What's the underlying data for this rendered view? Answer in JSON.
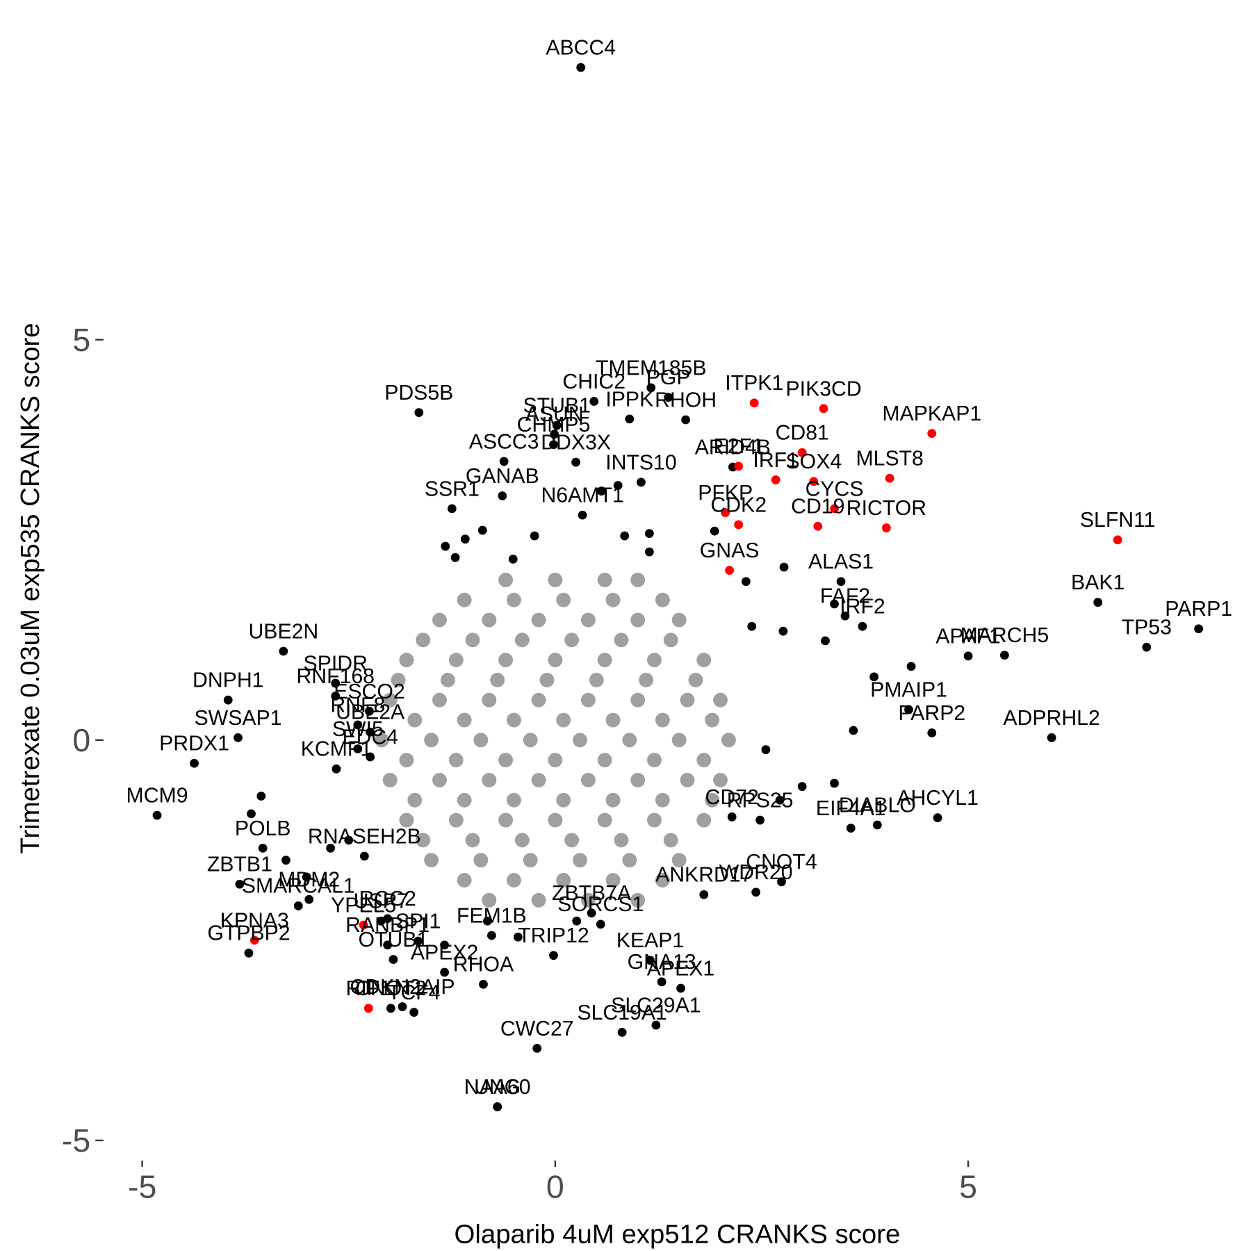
{
  "chart_data": {
    "type": "scatter",
    "x_label": "Olaparib 4uM exp512 CRANKS score",
    "y_label": "Trimetrexate 0.03uM exp535 CRANKS score",
    "xlim": [
      -5.45,
      8.15
    ],
    "ylim": [
      -5.19,
      8.94
    ],
    "xticks": [
      -5,
      0,
      5
    ],
    "yticks": [
      -5,
      0,
      5
    ],
    "grid": false,
    "series": [
      {
        "color": "#a0a0a0",
        "x": [
          -0.6,
          0,
          0.6,
          1.0,
          -1.1,
          -0.5,
          0.1,
          0.7,
          1.3,
          -1.4,
          -0.8,
          -0.2,
          0.4,
          1.0,
          1.5,
          -1.6,
          -1.0,
          -0.4,
          0.2,
          0.8,
          1.4,
          -1.8,
          -1.2,
          -0.6,
          0,
          0.6,
          1.2,
          1.8,
          -1.9,
          -1.3,
          -0.7,
          -0.1,
          0.5,
          1.1,
          1.7,
          -2,
          -1.4,
          -0.8,
          -0.2,
          0.4,
          1,
          1.6,
          2,
          -1.7,
          -1.1,
          -0.5,
          0.1,
          0.7,
          1.3,
          1.9,
          -2.1,
          -1.5,
          -0.9,
          -0.3,
          0.3,
          0.9,
          1.5,
          2.1,
          -1.8,
          -1.2,
          -0.6,
          0,
          0.6,
          1.2,
          1.8,
          -2,
          -1.4,
          -0.8,
          -0.2,
          0.4,
          1,
          1.6,
          2,
          -1.7,
          -1.1,
          -0.5,
          0.1,
          0.7,
          1.3,
          1.9,
          -1.8,
          -1.2,
          -0.6,
          0,
          0.6,
          1.2,
          1.8,
          -1.6,
          -1.0,
          -0.4,
          0.2,
          0.8,
          1.4,
          -1.5,
          -0.9,
          -0.3,
          0.3,
          0.9,
          1.5,
          -1.1,
          -0.5,
          0.1,
          0.7,
          1.3,
          -0.8,
          -0.2,
          0.4,
          1.0
        ],
        "values": [
          2,
          2,
          2,
          2,
          1.75,
          1.75,
          1.75,
          1.75,
          1.75,
          1.5,
          1.5,
          1.5,
          1.5,
          1.5,
          1.5,
          1.25,
          1.25,
          1.25,
          1.25,
          1.25,
          1.25,
          1,
          1,
          1,
          1,
          1,
          1,
          1,
          0.75,
          0.75,
          0.75,
          0.75,
          0.75,
          0.75,
          0.75,
          0.5,
          0.5,
          0.5,
          0.5,
          0.5,
          0.5,
          0.5,
          0.5,
          0.25,
          0.25,
          0.25,
          0.25,
          0.25,
          0.25,
          0.25,
          0,
          0,
          0,
          0,
          0,
          0,
          0,
          0,
          -0.25,
          -0.25,
          -0.25,
          -0.25,
          -0.25,
          -0.25,
          -0.25,
          -0.5,
          -0.5,
          -0.5,
          -0.5,
          -0.5,
          -0.5,
          -0.5,
          -0.5,
          -0.75,
          -0.75,
          -0.75,
          -0.75,
          -0.75,
          -0.75,
          -0.75,
          -1,
          -1,
          -1,
          -1,
          -1,
          -1,
          -1,
          -1.25,
          -1.25,
          -1.25,
          -1.25,
          -1.25,
          -1.25,
          -1.5,
          -1.5,
          -1.5,
          -1.5,
          -1.5,
          -1.5,
          -1.75,
          -1.75,
          -1.75,
          -1.75,
          -1.75,
          -2,
          -2,
          -2,
          -2
        ]
      },
      {
        "color": "#000000",
        "labels": [
          "ABCC4",
          "PDS5B",
          "TMEM185B",
          "PGP",
          "RHOH",
          "STUB1",
          "CHIC2",
          "ASUN",
          "IPPK",
          "ARID4B",
          "CHMP5",
          "DDX3X",
          "INTS10",
          "ASCC3",
          "SSR1",
          "GANAB",
          "N6AMT1",
          "ALAS1",
          "FAF2",
          "PARP1",
          "BAK1",
          "APAF1",
          "IRF2",
          "MARCH5",
          "TP53",
          "PMAIP1",
          "ADPRHL2",
          "PARP2",
          "EIF4A1",
          "AHCYL1",
          "DIABLO",
          "CD72",
          "RPS25",
          "ANKRD17",
          "WDR20",
          "CNOT4",
          "UBE2N",
          "DNPH1",
          "SWSAP1",
          "PRDX1",
          "MCM9",
          "SPIDR",
          "RNF168",
          "ESCO2",
          "RNF8",
          "UBE2A",
          "KCMF1",
          "SWI5",
          "EDC4",
          "POLB",
          "RNASEH2B",
          "ZBTB1",
          "SMARCAL1",
          "MDM2",
          "USP7",
          "RCC2",
          "GTPBP2",
          "RANBP1",
          "OTUB1",
          "SPI1",
          "APEX2",
          "RHOA",
          "FEM1B",
          "SORCS1",
          "ZBTB7A",
          "TRIP12",
          "KEAP1",
          "APEX1",
          "GNA13",
          "SLC29A1",
          "SLC19A1",
          "CWC27",
          "CNOT2",
          "TCF4",
          "CDKN2AIP",
          "NAA60",
          "UNG",
          null,
          null,
          null,
          null,
          null,
          null,
          null,
          null,
          null,
          null,
          null,
          null,
          null,
          null,
          null,
          null,
          null,
          null,
          null,
          null,
          null,
          null,
          null,
          null,
          null,
          null,
          null,
          null,
          null,
          null,
          null,
          null,
          null,
          null,
          null
        ],
        "x": [
          0.31,
          -1.65,
          1.16,
          1.37,
          1.58,
          0.02,
          0.47,
          -0.01,
          0.9,
          2.15,
          -0.02,
          0.25,
          1.04,
          -0.62,
          -1.25,
          -0.64,
          0.33,
          3.46,
          3.51,
          7.79,
          6.57,
          5.0,
          3.72,
          5.44,
          7.16,
          4.28,
          6.01,
          4.56,
          3.58,
          4.63,
          3.9,
          2.14,
          2.48,
          1.8,
          2.43,
          2.74,
          -3.29,
          -3.96,
          -3.84,
          -4.37,
          -4.82,
          -2.66,
          -2.66,
          -2.25,
          -2.39,
          -2.24,
          -2.65,
          -2.39,
          -2.24,
          -3.54,
          -2.31,
          -3.82,
          -3.11,
          -2.98,
          -2.11,
          -2.03,
          -3.71,
          -2.03,
          -1.96,
          -1.66,
          -1.34,
          -0.87,
          -0.77,
          0.55,
          0.44,
          -0.02,
          1.15,
          1.52,
          1.29,
          1.22,
          0.81,
          -0.22,
          -1.99,
          -1.71,
          -1.85,
          -0.7,
          -0.7,
          -0.88,
          -1.09,
          -1.33,
          -1.21,
          -0.51,
          -0.25,
          0.56,
          0.76,
          0.84,
          1.14,
          1.14,
          1.93,
          2.31,
          2.77,
          3.38,
          2.38,
          2.76,
          3.27,
          4.31,
          3.86,
          3.61,
          2.55,
          2.99,
          3.38,
          2.72,
          -3.01,
          -3.26,
          -2.72,
          -2.5,
          -3.68,
          -3.56,
          -0.82,
          -0.45,
          -1.34,
          0.26
        ],
        "values": [
          8.4,
          4.09,
          4.4,
          4.28,
          4.0,
          3.93,
          4.23,
          3.82,
          4.01,
          3.41,
          3.69,
          3.47,
          3.22,
          3.48,
          2.89,
          3.05,
          2.81,
          1.98,
          1.55,
          1.39,
          1.72,
          1.05,
          1.42,
          1.06,
          1.16,
          0.38,
          0.03,
          0.09,
          -1.1,
          -0.97,
          -1.06,
          -0.96,
          -1.0,
          -1.93,
          -1.9,
          -1.77,
          1.11,
          0.5,
          0.03,
          -0.29,
          -0.94,
          0.71,
          0.55,
          0.36,
          0.19,
          0.1,
          -0.36,
          -0.11,
          -0.21,
          -1.35,
          -1.45,
          -1.8,
          -2.07,
          -1.99,
          -2.26,
          -2.23,
          -2.66,
          -2.56,
          -2.74,
          -2.51,
          -2.9,
          -3.05,
          -2.44,
          -2.3,
          -2.16,
          -2.69,
          -2.75,
          -3.1,
          -3.02,
          -3.56,
          -3.65,
          -3.85,
          -3.35,
          -3.4,
          -3.33,
          -4.58,
          -4.58,
          2.62,
          2.51,
          2.42,
          2.28,
          2.26,
          2.55,
          3.11,
          3.18,
          2.55,
          2.58,
          2.35,
          2.61,
          1.98,
          2.16,
          1.7,
          1.42,
          1.36,
          1.24,
          0.92,
          0.79,
          0.12,
          -0.12,
          -0.58,
          -0.54,
          -0.75,
          -1.71,
          -1.5,
          -1.35,
          -1.25,
          -0.92,
          -0.7,
          -2.26,
          -2.46,
          -2.56,
          -2.26
        ]
      },
      {
        "color": "#ff0000",
        "labels": [
          "ITPK1",
          "PIK3CD",
          "MAPKAP1",
          "CD81",
          "MLST8",
          "SOX4",
          "E2F1",
          "PFKP",
          "IRF1",
          "CD19",
          "CYCS",
          "RICTOR",
          "CDK2",
          "GNAS",
          "SLFN11",
          "KPNA3",
          "YPEL5",
          "RIF1"
        ],
        "x": [
          2.41,
          3.25,
          4.56,
          2.99,
          4.05,
          3.13,
          2.22,
          2.06,
          2.67,
          3.18,
          3.38,
          4.01,
          2.22,
          2.11,
          6.81,
          -3.64,
          -2.32,
          -2.26
        ],
        "values": [
          4.21,
          4.14,
          3.83,
          3.59,
          3.27,
          3.23,
          3.42,
          2.84,
          3.25,
          2.67,
          2.89,
          2.65,
          2.69,
          2.12,
          2.5,
          -2.5,
          -2.31,
          -3.35
        ]
      }
    ]
  }
}
